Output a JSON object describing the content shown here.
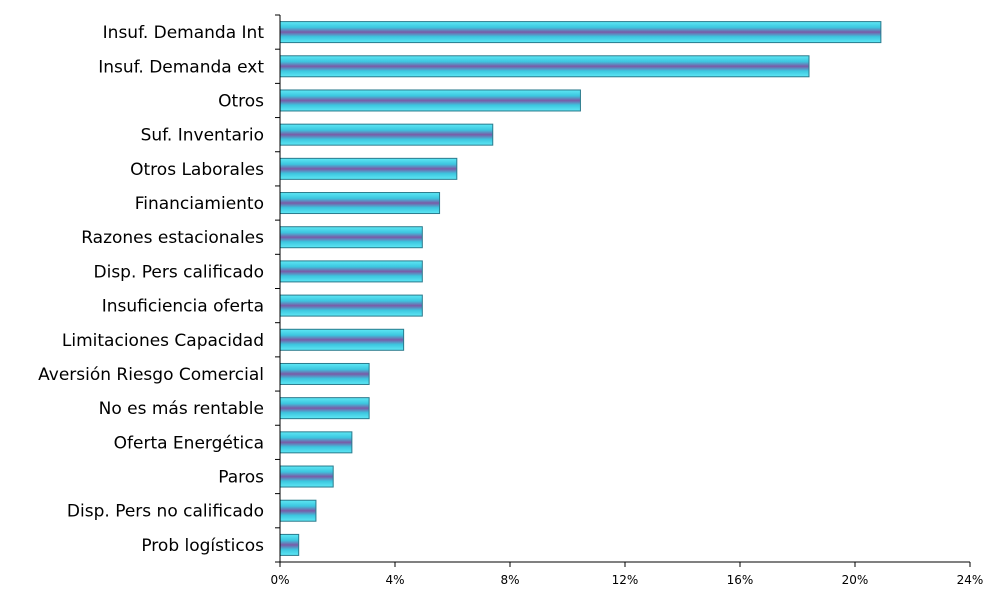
{
  "chart_data": {
    "type": "bar",
    "orientation": "horizontal",
    "categories": [
      "Insuf. Demanda Int",
      "Insuf. Demanda ext",
      "Otros",
      "Suf. Inventario",
      "Otros Laborales",
      "Financiamiento",
      "Razones estacionales",
      "Disp. Pers calificado",
      "Insuficiencia oferta",
      "Limitaciones Capacidad",
      "Aversión Riesgo Comercial",
      "No es más rentable",
      "Oferta Energética",
      "Paros",
      "Disp. Pers no calificado",
      "Prob logísticos"
    ],
    "values": [
      20.9,
      18.4,
      10.45,
      7.4,
      6.15,
      5.55,
      4.95,
      4.95,
      4.95,
      4.3,
      3.1,
      3.1,
      2.5,
      1.85,
      1.25,
      0.65
    ],
    "title": "",
    "xlabel": "",
    "ylabel": "",
    "xlim": [
      0,
      24
    ],
    "x_ticks": [
      "0%",
      "4%",
      "8%",
      "12%",
      "16%",
      "20%",
      "24%"
    ],
    "grid": false,
    "legend": "none",
    "colors": {
      "bar_light": "#5ee8f5",
      "bar_mid": "#3cc6df",
      "bar_dark": "#7a5aa6",
      "bar_border": "#2a7a8c"
    }
  }
}
